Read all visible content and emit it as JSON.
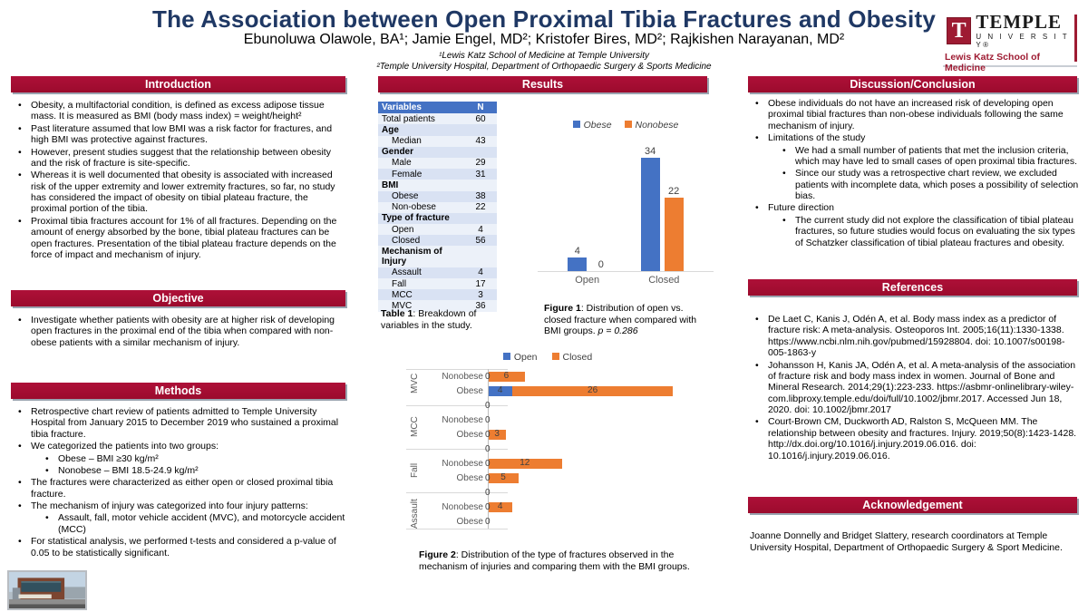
{
  "header": {
    "title": "The Association between Open Proximal Tibia Fractures and Obesity",
    "authors": "Ebunoluwa Olawole, BA¹; Jamie Engel, MD²; Kristofer Bires, MD²; Rajkishen Narayanan, MD²",
    "affiliation1": "¹Lewis Katz School of Medicine at Temple University",
    "affiliation2": "²Temple University Hospital, Department of Orthopaedic Surgery & Sports Medicine"
  },
  "logo": {
    "t_letter": "T",
    "university": "TEMPLE",
    "university_sub": "U N I V E R S I T Y®",
    "school": "Lewis Katz School of Medicine"
  },
  "colors": {
    "cherry": "#A00C30",
    "title_navy": "#1F3864",
    "table_header_blue": "#4472C4",
    "series_blue": "#4472C4",
    "series_orange": "#ED7D31"
  },
  "introduction": {
    "title": "Introduction",
    "bullets": [
      {
        "level": 0,
        "text": "Obesity, a multifactorial condition, is defined as excess adipose tissue mass. It is measured as BMI (body mass index) = weight/height²"
      },
      {
        "level": 0,
        "text": "Past literature assumed that low BMI was a risk factor for fractures, and high BMI was protective against fractures."
      },
      {
        "level": 0,
        "text": "However, present studies suggest that the relationship between obesity and the risk of fracture is site-specific."
      },
      {
        "level": 0,
        "text": "Whereas it is well documented that obesity is associated with increased risk of the upper extremity and lower extremity fractures, so far, no study has considered the impact of obesity on tibial plateau fracture, the proximal portion of the tibia."
      },
      {
        "level": 0,
        "text": "Proximal tibia fractures account for 1% of all fractures. Depending on the amount of energy absorbed by the bone, tibial plateau fractures can be open fractures. Presentation of the tibial plateau fracture depends on the force of impact and mechanism of injury."
      }
    ]
  },
  "objective": {
    "title": "Objective",
    "bullets": [
      {
        "level": 0,
        "text": "Investigate whether patients with obesity are at higher risk of developing open fractures in the proximal end of the tibia when compared with non-obese patients with a similar mechanism of injury."
      }
    ]
  },
  "methods": {
    "title": "Methods",
    "bullets": [
      {
        "level": 0,
        "text": "Retrospective chart review of patients admitted to Temple University Hospital from January 2015 to December 2019 who sustained a proximal tibia fracture."
      },
      {
        "level": 0,
        "text": "We categorized the patients into two groups:"
      },
      {
        "level": 1,
        "text": "Obese – BMI ≥30 kg/m²"
      },
      {
        "level": 1,
        "text": "Nonobese – BMI 18.5-24.9 kg/m²"
      },
      {
        "level": 0,
        "text": "The fractures were characterized as either open or closed proximal tibia fracture."
      },
      {
        "level": 0,
        "text": "The mechanism of injury was categorized into four injury patterns:"
      },
      {
        "level": 1,
        "text": "Assault, fall, motor vehicle accident (MVC), and motorcycle accident (MCC)"
      },
      {
        "level": 0,
        "text": "For statistical analysis, we performed t-tests and considered a p-value of 0.05 to be statistically significant."
      }
    ]
  },
  "results": {
    "title": "Results"
  },
  "table1": {
    "headers": [
      "Variables",
      "N"
    ],
    "rows": [
      {
        "label": "Total patients",
        "value": "60",
        "bold": false,
        "indent": false
      },
      {
        "label": "Age",
        "value": "",
        "bold": true,
        "indent": false
      },
      {
        "label": "Median",
        "value": "43",
        "bold": false,
        "indent": true
      },
      {
        "label": "Gender",
        "value": "",
        "bold": true,
        "indent": false
      },
      {
        "label": "Male",
        "value": "29",
        "bold": false,
        "indent": true
      },
      {
        "label": "Female",
        "value": "31",
        "bold": false,
        "indent": true
      },
      {
        "label": "BMI",
        "value": "",
        "bold": true,
        "indent": false
      },
      {
        "label": "Obese",
        "value": "38",
        "bold": false,
        "indent": true
      },
      {
        "label": "Non-obese",
        "value": "22",
        "bold": false,
        "indent": true
      },
      {
        "label": "Type of fracture",
        "value": "",
        "bold": true,
        "indent": false
      },
      {
        "label": "Open",
        "value": "4",
        "bold": false,
        "indent": true
      },
      {
        "label": "Closed",
        "value": "56",
        "bold": false,
        "indent": true
      },
      {
        "label": "Mechanism of Injury",
        "value": "",
        "bold": true,
        "indent": false
      },
      {
        "label": "Assault",
        "value": "4",
        "bold": false,
        "indent": true
      },
      {
        "label": "Fall",
        "value": "17",
        "bold": false,
        "indent": true
      },
      {
        "label": "MCC",
        "value": "3",
        "bold": false,
        "indent": true
      },
      {
        "label": "MVC",
        "value": "36",
        "bold": false,
        "indent": true
      }
    ],
    "caption": {
      "bold": "Table 1",
      "rest": ": Breakdown of variables in the study."
    }
  },
  "figure1_caption": {
    "bold": "Figure 1",
    "rest": ": Distribution of open vs. closed fracture when compared with BMI groups. ",
    "italic": "p = 0.286"
  },
  "figure2_caption": {
    "bold": "Figure 2",
    "rest": ": Distribution of the type of fractures observed in the mechanism of injuries and comparing them with the BMI groups."
  },
  "chart_data": [
    {
      "id": "figure1",
      "type": "bar",
      "categories": [
        "Open",
        "Closed"
      ],
      "series": [
        {
          "name": "Obese",
          "color": "#4472C4",
          "values": [
            4,
            34
          ]
        },
        {
          "name": "Nonobese",
          "color": "#ED7D31",
          "values": [
            0,
            22
          ]
        }
      ],
      "ylim": [
        0,
        34
      ],
      "legend_position": "top",
      "grid": false,
      "data_labels": true
    },
    {
      "id": "figure2",
      "type": "bar",
      "orientation": "horizontal",
      "stacked": true,
      "legend": [
        {
          "name": "Open",
          "color": "#4472C4"
        },
        {
          "name": "Closed",
          "color": "#ED7D31"
        }
      ],
      "xlim": [
        0,
        36
      ],
      "group_labels": [
        "MVC",
        "MCC",
        "Fall",
        "Assault"
      ],
      "rows": [
        {
          "group": "MVC",
          "label": "Nonobese",
          "open": 0,
          "closed": 6
        },
        {
          "group": "MVC",
          "label": "Obese",
          "open": 4,
          "closed": 26
        },
        {
          "separator": true,
          "label": "",
          "open": 0,
          "closed": 0
        },
        {
          "group": "MCC",
          "label": "Nonobese",
          "open": 0,
          "closed": 0
        },
        {
          "group": "MCC",
          "label": "Obese",
          "open": 0,
          "closed": 3
        },
        {
          "separator": true,
          "label": "",
          "open": 0,
          "closed": 0
        },
        {
          "group": "Fall",
          "label": "Nonobese",
          "open": 0,
          "closed": 12
        },
        {
          "group": "Fall",
          "label": "Obese",
          "open": 0,
          "closed": 5
        },
        {
          "separator": true,
          "label": "",
          "open": 0,
          "closed": 0
        },
        {
          "group": "Assault",
          "label": "Nonobese",
          "open": 0,
          "closed": 4
        },
        {
          "group": "Assault",
          "label": "Obese",
          "open": 0,
          "closed": 0
        }
      ]
    }
  ],
  "discussion": {
    "title": "Discussion/Conclusion",
    "bullets": [
      {
        "level": 0,
        "text": "Obese individuals do not have an increased risk of developing open proximal tibial fractures than non-obese individuals following the same mechanism of injury."
      },
      {
        "level": 0,
        "text": "Limitations of the study"
      },
      {
        "level": 1,
        "text": "We had a small number of patients that met the inclusion criteria, which may have led to small cases of open proximal tibia fractures."
      },
      {
        "level": 1,
        "text": "Since our study was a retrospective chart review, we excluded patients with incomplete data, which poses a possibility of selection bias."
      },
      {
        "level": 0,
        "text": "Future direction"
      },
      {
        "level": 1,
        "text": "The current study did not explore the classification of tibial plateau fractures, so future studies would focus on evaluating the six types of Schatzker classification of tibial plateau fractures and obesity."
      }
    ]
  },
  "references": {
    "title": "References",
    "bullets": [
      {
        "level": 0,
        "text": "De Laet C, Kanis J, Odén A, et al. Body mass index as a predictor of fracture risk: A meta-analysis. Osteoporos Int. 2005;16(11):1330-1338. https://www.ncbi.nlm.nih.gov/pubmed/15928804. doi: 10.1007/s00198-005-1863-y"
      },
      {
        "level": 0,
        "text": "Johansson H, Kanis JA, Odén A, et al. A meta-analysis of the association of fracture risk and body mass index in women. Journal of Bone and Mineral Research. 2014;29(1):223-233. https://asbmr-onlinelibrary-wiley-com.libproxy.temple.edu/doi/full/10.1002/jbmr.2017. Accessed Jun 18, 2020. doi: 10.1002/jbmr.2017"
      },
      {
        "level": 0,
        "text": "Court-Brown CM, Duckworth AD, Ralston S, McQueen MM. The relationship between obesity and fractures. Injury. 2019;50(8):1423-1428. http://dx.doi.org/10.1016/j.injury.2019.06.016. doi: 10.1016/j.injury.2019.06.016."
      }
    ]
  },
  "acknowledgement": {
    "title": "Acknowledgement",
    "text": "Joanne Donnelly and Bridget Slattery, research coordinators at Temple University Hospital, Department of Orthopaedic Surgery & Sport Medicine."
  }
}
